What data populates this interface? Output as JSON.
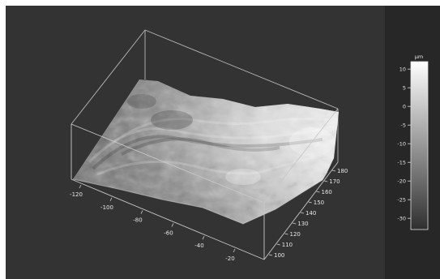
{
  "viewer": {
    "plot_bg": "#333333",
    "panel_bg": "#272727",
    "border_bg": "#ffffff"
  },
  "axes": {
    "x_ticks": [
      "-120",
      "-100",
      "-80",
      "-60",
      "-40",
      "-20"
    ],
    "y_ticks": [
      "100",
      "110",
      "120",
      "130",
      "140",
      "150",
      "160",
      "170",
      "180"
    ]
  },
  "colorbar": {
    "unit": "µm",
    "ticks": [
      "10",
      "5",
      "0",
      "-5",
      "-10",
      "-15",
      "-20",
      "-25",
      "-30"
    ],
    "min": -33,
    "max": 12,
    "colors": {
      "low": "#2f2f2f",
      "high": "#ffffff"
    }
  },
  "chart_data": {
    "type": "surface",
    "z_unit": "µm",
    "z_range": [
      -33,
      12
    ],
    "x_ticks": [
      -120,
      -100,
      -80,
      -60,
      -40,
      -20
    ],
    "y_ticks": [
      100,
      110,
      120,
      130,
      140,
      150,
      160,
      170,
      180
    ],
    "colorscale": "grayscale"
  }
}
